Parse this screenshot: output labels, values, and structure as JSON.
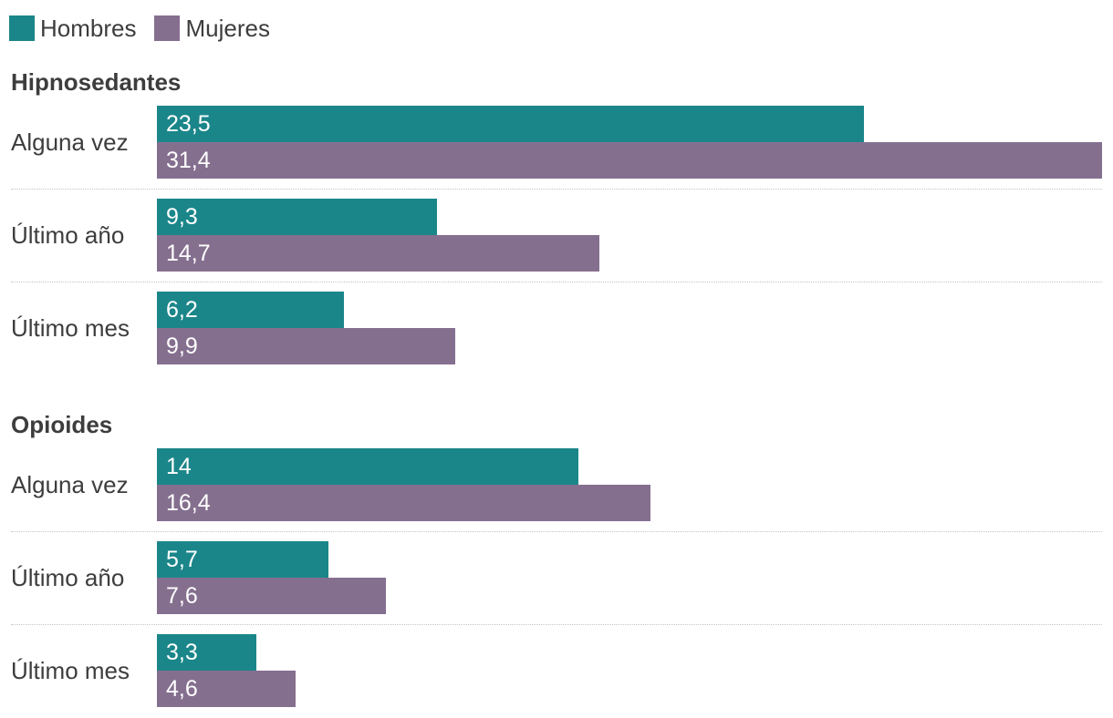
{
  "colors": {
    "hombres": "#1b868a",
    "mujeres": "#856f8f"
  },
  "legend": [
    {
      "label": "Hombres",
      "color": "#1b868a"
    },
    {
      "label": "Mujeres",
      "color": "#856f8f"
    }
  ],
  "chart_data": {
    "type": "bar",
    "orientation": "horizontal",
    "grouped": true,
    "grid": false,
    "legend_position": "top-left",
    "series_names": [
      "Hombres",
      "Mujeres"
    ],
    "xlim": [
      0,
      31.4
    ],
    "groups": [
      {
        "title": "Hipnosedantes",
        "rows": [
          {
            "label": "Alguna vez",
            "values": [
              23.5,
              31.4
            ],
            "value_labels": [
              "23,5",
              "31,4"
            ]
          },
          {
            "label": "Último año",
            "values": [
              9.3,
              14.7
            ],
            "value_labels": [
              "9,3",
              "14,7"
            ]
          },
          {
            "label": "Último mes",
            "values": [
              6.2,
              9.9
            ],
            "value_labels": [
              "6,2",
              "9,9"
            ]
          }
        ]
      },
      {
        "title": "Opioides",
        "rows": [
          {
            "label": "Alguna vez",
            "values": [
              14,
              16.4
            ],
            "value_labels": [
              "14",
              "16,4"
            ]
          },
          {
            "label": "Último año",
            "values": [
              5.7,
              7.6
            ],
            "value_labels": [
              "5,7",
              "7,6"
            ]
          },
          {
            "label": "Último mes",
            "values": [
              3.3,
              4.6
            ],
            "value_labels": [
              "3,3",
              "4,6"
            ]
          }
        ]
      }
    ]
  }
}
